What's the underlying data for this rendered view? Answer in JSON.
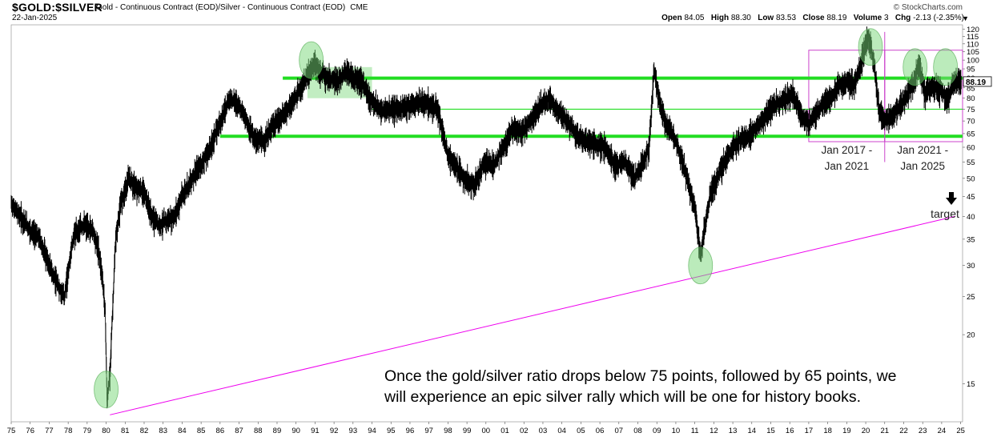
{
  "header": {
    "symbol": "$GOLD:$SILVER",
    "description": "Gold - Continuous Contract (EOD)/Silver - Continuous Contract (EOD)",
    "exchange": "CME",
    "brand": "© StockCharts.com",
    "date": "22-Jan-2025",
    "open_label": "Open",
    "open": "84.05",
    "high_label": "High",
    "high": "88.30",
    "low_label": "Low",
    "low": "83.53",
    "close_label": "Close",
    "close": "88.19",
    "volume_label": "Volume",
    "volume": "3",
    "chg_label": "Chg",
    "chg": "-2.13 (-2.35%)",
    "dropdown_icon": "triangle-down-icon"
  },
  "annotation": {
    "line1": "Once the gold/silver ratio drops below 75 points, followed by 65 points, we",
    "line2": "will experience an epic silver rally which will be one for history books."
  },
  "chart_data": {
    "type": "line",
    "scale": "log",
    "ylim": [
      12,
      123
    ],
    "y_ticks": [
      15,
      20,
      25,
      30,
      35,
      40,
      45,
      50,
      55,
      60,
      65,
      70,
      75,
      80,
      85,
      90,
      95,
      100,
      105,
      110,
      115,
      120
    ],
    "x_ticks": [
      "75",
      "76",
      "77",
      "78",
      "79",
      "80",
      "81",
      "82",
      "83",
      "84",
      "85",
      "86",
      "87",
      "88",
      "89",
      "90",
      "91",
      "92",
      "93",
      "94",
      "95",
      "96",
      "97",
      "98",
      "99",
      "00",
      "01",
      "02",
      "03",
      "04",
      "05",
      "06",
      "07",
      "08",
      "09",
      "10",
      "11",
      "12",
      "13",
      "14",
      "15",
      "16",
      "17",
      "18",
      "19",
      "20",
      "21",
      "22",
      "23",
      "24",
      "25"
    ],
    "x_range": [
      1975.0,
      2025.1
    ],
    "last_value": "88.19",
    "series": [
      {
        "x": [
          1975.0,
          1975.5,
          1976.0,
          1976.5,
          1977.0,
          1977.4,
          1977.8,
          1978.3,
          1978.8,
          1979.3,
          1979.6,
          1979.8,
          1979.95,
          1980.05,
          1980.2,
          1980.5,
          1980.8,
          1981.2,
          1981.6,
          1982.0,
          1982.4,
          1982.8,
          1983.2,
          1983.6,
          1984.0,
          1984.5,
          1985.0,
          1985.5,
          1986.0,
          1986.5,
          1987.0,
          1987.4,
          1987.8,
          1988.3,
          1988.8,
          1989.3,
          1989.8,
          1990.3,
          1990.7,
          1991.0,
          1991.3,
          1991.7,
          1992.2,
          1992.6,
          1993.0,
          1993.5,
          1994.0,
          1994.6,
          1995.2,
          1995.8,
          1996.4,
          1997.0,
          1997.5,
          1998.0,
          1998.4,
          1998.9,
          1999.4,
          1999.9,
          2000.4,
          2000.9,
          2001.4,
          2001.9,
          2002.5,
          2003.0,
          2003.3,
          2003.8,
          2004.3,
          2004.8,
          2005.3,
          2005.8,
          2006.3,
          2006.8,
          2007.3,
          2007.8,
          2008.2,
          2008.6,
          2008.85,
          2009.1,
          2009.5,
          2009.9,
          2010.3,
          2010.7,
          2011.0,
          2011.3,
          2011.5,
          2011.8,
          2012.2,
          2012.6,
          2013.0,
          2013.4,
          2013.8,
          2014.2,
          2014.6,
          2015.0,
          2015.4,
          2015.8,
          2016.2,
          2016.6,
          2017.0,
          2017.4,
          2017.8,
          2018.2,
          2018.6,
          2019.0,
          2019.4,
          2019.8,
          2020.1,
          2020.25,
          2020.45,
          2020.7,
          2021.0,
          2021.4,
          2021.8,
          2022.2,
          2022.6,
          2022.8,
          2023.1,
          2023.5,
          2023.9,
          2024.3,
          2024.7,
          2025.05
        ],
        "y": [
          43,
          40,
          37,
          35,
          30,
          27,
          25,
          36,
          38,
          37,
          33,
          28,
          23,
          13.5,
          16,
          35,
          44,
          50,
          47,
          46,
          40,
          38,
          39,
          40,
          45,
          50,
          54,
          60,
          70,
          80,
          77,
          70,
          63,
          62,
          68,
          72,
          78,
          85,
          93,
          98,
          93,
          90,
          88,
          94,
          90,
          88,
          78,
          74,
          75,
          76,
          78,
          78,
          74,
          57,
          54,
          50,
          48,
          55,
          54,
          60,
          67,
          65,
          72,
          78,
          80,
          74,
          70,
          64,
          62,
          61,
          60,
          54,
          55,
          50,
          54,
          60,
          95,
          80,
          68,
          64,
          56,
          48,
          42,
          32,
          37,
          45,
          50,
          56,
          60,
          63,
          64,
          67,
          71,
          75,
          78,
          80,
          82,
          72,
          69,
          73,
          78,
          80,
          86,
          88,
          87,
          100,
          115,
          110,
          95,
          75,
          70,
          72,
          76,
          82,
          90,
          98,
          82,
          86,
          84,
          80,
          88,
          88.19
        ]
      }
    ],
    "horizontal_lines": [
      {
        "y": 90,
        "weight": "thick",
        "color": "#22dd22"
      },
      {
        "y": 75,
        "weight": "thin",
        "color": "#22dd22"
      },
      {
        "y": 64,
        "weight": "thick",
        "color": "#22dd22"
      }
    ],
    "trendline": {
      "color": "#ee00ee",
      "from": {
        "x": 1980.2,
        "y": 12.5
      },
      "to": {
        "x": 2024.7,
        "y": 40
      }
    },
    "highlight_rects": [
      {
        "x0": 2017.0,
        "x1": 2021.0,
        "y0": 62,
        "y1": 106,
        "color": "#cc44cc"
      },
      {
        "x0": 2021.0,
        "x1": 2025.1,
        "y0": 62,
        "y1": 106,
        "color": "#cc44cc"
      }
    ],
    "green_box": {
      "x0": 1990.6,
      "x1": 1994.0,
      "y0": 80,
      "y1": 96
    },
    "circles": [
      {
        "x": 1980.0,
        "y": 14.5
      },
      {
        "x": 1990.8,
        "y": 100
      },
      {
        "x": 2011.3,
        "y": 30
      },
      {
        "x": 2020.25,
        "y": 108
      },
      {
        "x": 2022.6,
        "y": 96
      },
      {
        "x": 2024.2,
        "y": 96
      }
    ],
    "period_labels": [
      {
        "line1": "Jan 2017 -",
        "line2": "Jan 2021"
      },
      {
        "line1": "Jan 2021 -",
        "line2": "Jan 2025"
      }
    ],
    "target_label": "target",
    "target_icon": "arrow-down-icon"
  }
}
